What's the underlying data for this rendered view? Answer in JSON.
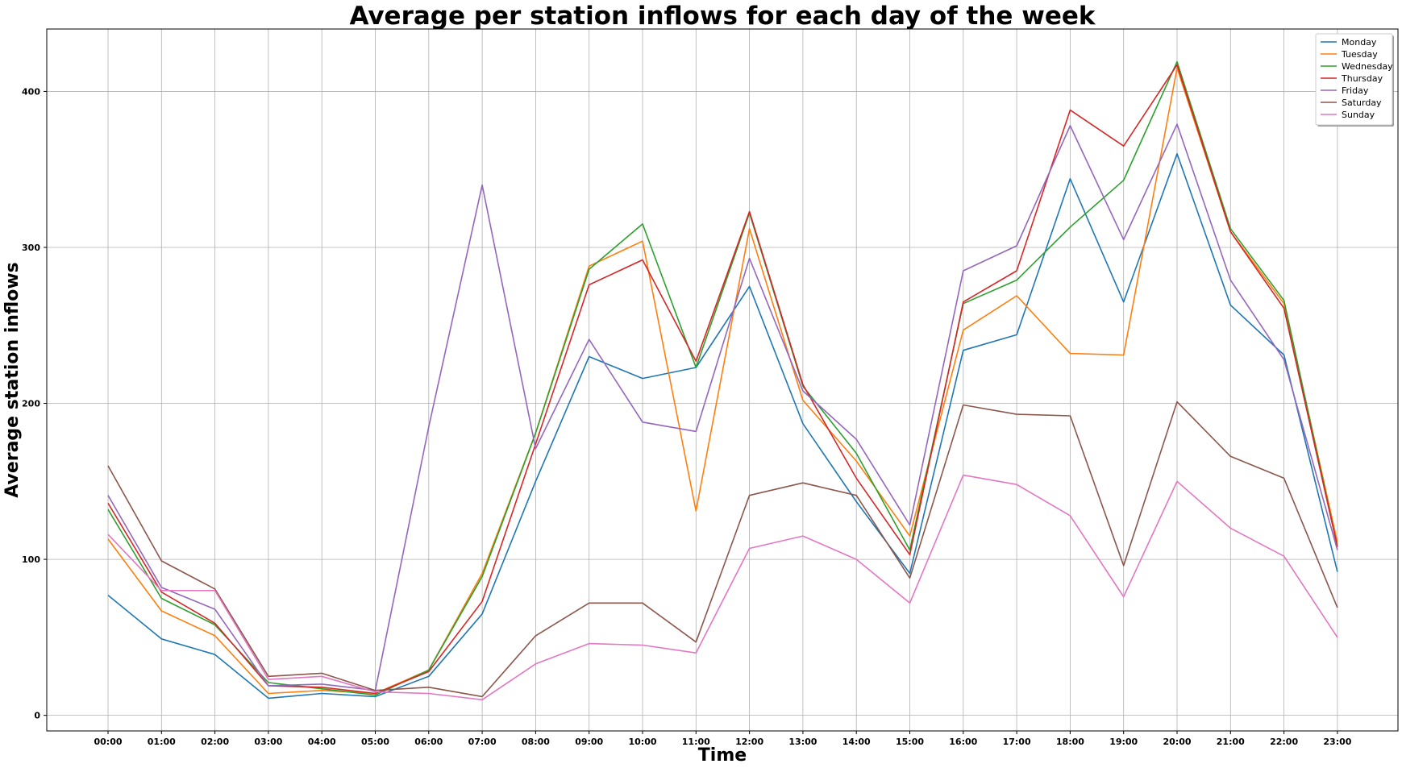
{
  "chart_data": {
    "type": "line",
    "title": "Average per station inflows for each day of the week",
    "xlabel": "Time",
    "ylabel": "Average station inflows",
    "ylim": [
      -10,
      440
    ],
    "yticks": [
      0,
      100,
      200,
      300,
      400
    ],
    "grid": true,
    "legend_position": "top-right",
    "categories": [
      "00:00",
      "01:00",
      "02:00",
      "03:00",
      "04:00",
      "05:00",
      "06:00",
      "07:00",
      "08:00",
      "09:00",
      "10:00",
      "11:00",
      "12:00",
      "13:00",
      "14:00",
      "15:00",
      "16:00",
      "17:00",
      "18:00",
      "19:00",
      "20:00",
      "21:00",
      "22:00",
      "23:00"
    ],
    "series": [
      {
        "name": "Monday",
        "color": "#1f77b4",
        "values": [
          77,
          49,
          39,
          11,
          14,
          12,
          25,
          65,
          150,
          230,
          216,
          223,
          275,
          187,
          137,
          91,
          234,
          244,
          344,
          265,
          360,
          263,
          231,
          92
        ]
      },
      {
        "name": "Tuesday",
        "color": "#ff7f0e",
        "values": [
          113,
          67,
          51,
          14,
          16,
          14,
          29,
          91,
          181,
          288,
          304,
          131,
          312,
          202,
          163,
          115,
          247,
          269,
          232,
          231,
          415,
          310,
          264,
          111
        ]
      },
      {
        "name": "Wednesday",
        "color": "#2ca02c",
        "values": [
          132,
          75,
          58,
          21,
          17,
          13,
          29,
          89,
          181,
          286,
          315,
          223,
          322,
          211,
          168,
          106,
          264,
          279,
          313,
          343,
          419,
          312,
          266,
          108
        ]
      },
      {
        "name": "Thursday",
        "color": "#d62728",
        "values": [
          136,
          79,
          59,
          19,
          18,
          14,
          28,
          73,
          174,
          276,
          292,
          227,
          323,
          212,
          152,
          103,
          265,
          285,
          388,
          365,
          417,
          310,
          261,
          108
        ]
      },
      {
        "name": "Friday",
        "color": "#9467bd",
        "values": [
          141,
          82,
          68,
          19,
          20,
          16,
          185,
          340,
          171,
          241,
          188,
          182,
          293,
          208,
          177,
          122,
          285,
          301,
          378,
          305,
          379,
          279,
          228,
          106
        ]
      },
      {
        "name": "Saturday",
        "color": "#8c564b",
        "values": [
          160,
          99,
          81,
          25,
          27,
          16,
          18,
          12,
          51,
          72,
          72,
          47,
          141,
          149,
          141,
          88,
          199,
          193,
          192,
          96,
          201,
          166,
          152,
          69
        ]
      },
      {
        "name": "Sunday",
        "color": "#e377c2",
        "values": [
          116,
          80,
          80,
          23,
          25,
          15,
          14,
          10,
          33,
          46,
          45,
          40,
          107,
          115,
          100,
          72,
          154,
          148,
          128,
          76,
          150,
          120,
          102,
          50
        ]
      }
    ]
  }
}
